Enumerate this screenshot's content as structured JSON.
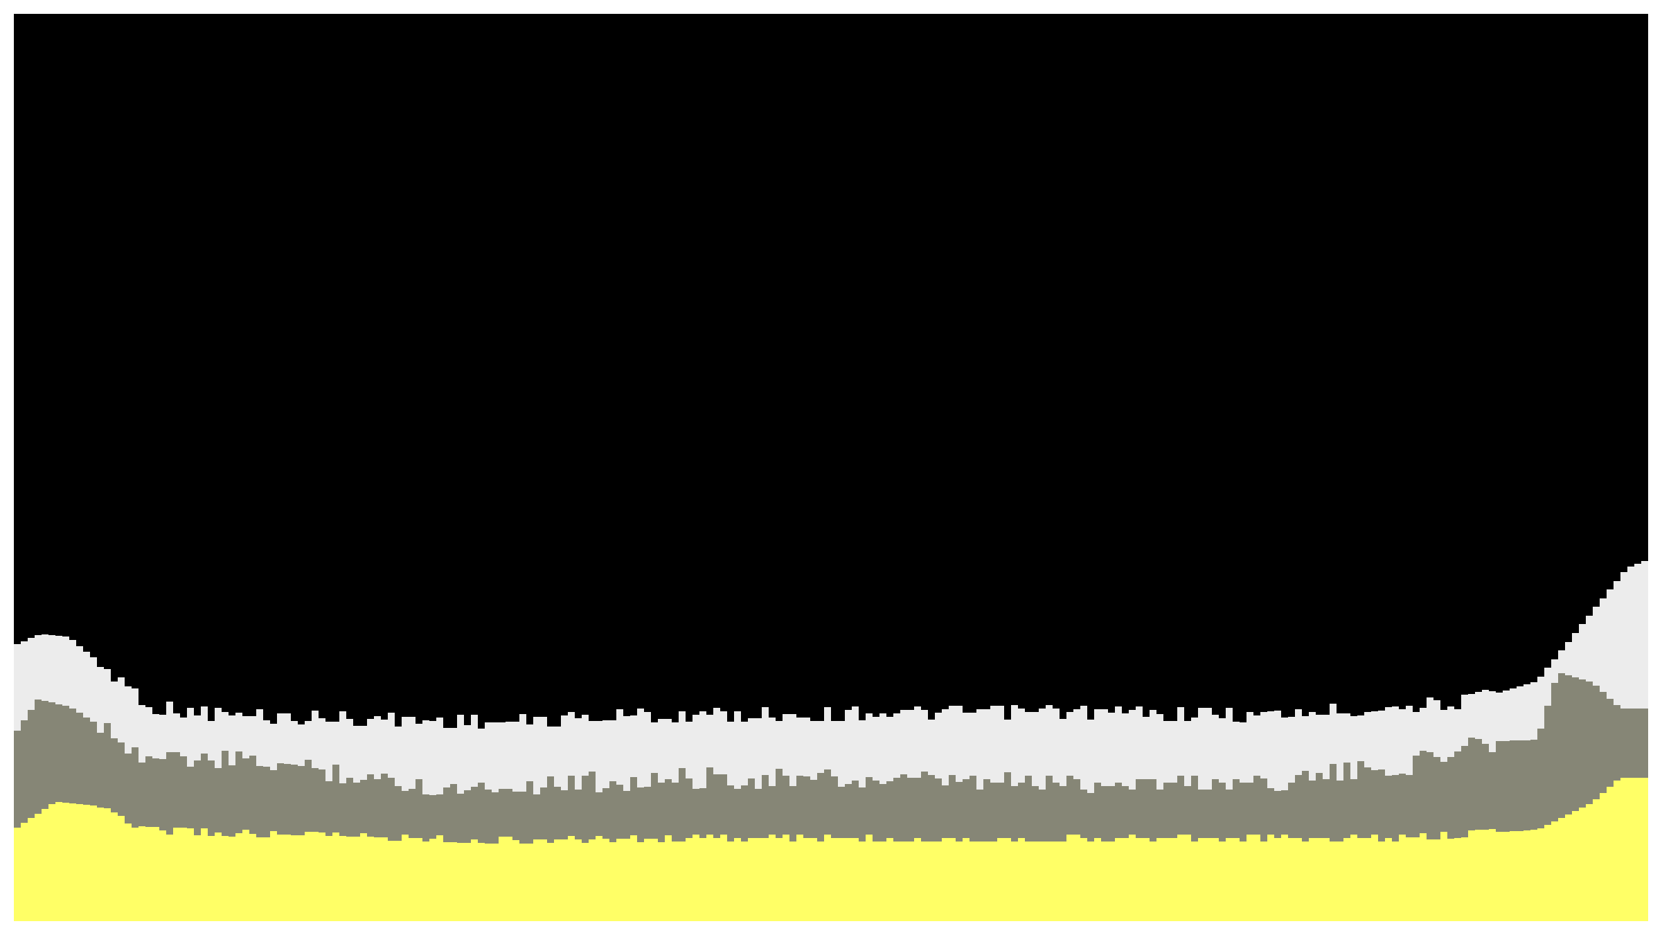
{
  "colors": {
    "sky": "#000000",
    "frame": "#ffffff",
    "snow_layer": "#ececec",
    "rock_layer": "#868676",
    "sand_layer": "#ffff66"
  },
  "terrain": {
    "layers": [
      "snow_layer",
      "rock_layer",
      "sand_layer"
    ]
  }
}
